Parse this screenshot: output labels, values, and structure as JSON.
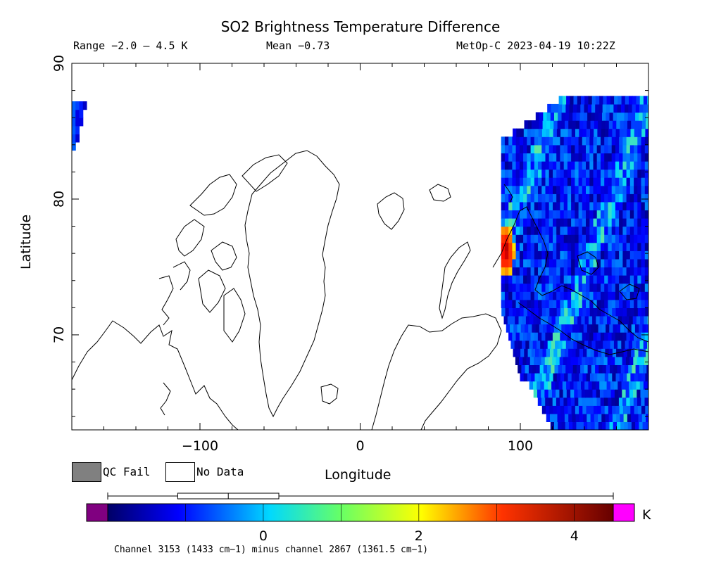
{
  "header": {
    "title": "SO2 Brightness Temperature Difference",
    "range": "Range −2.0 – 4.5 K",
    "mean": "Mean −0.73",
    "satellite_time": "MetOp-C 2023-04-19 10:22Z"
  },
  "legend": {
    "qc_fail_label": "QC Fail",
    "no_data_label": "No Data",
    "qc_fail_color": "#808080",
    "no_data_color": "#ffffff",
    "unit": "K"
  },
  "caption": "Channel 3153 (1433 cm−1) minus channel 2867 (1361.5 cm−1)",
  "chart_data": {
    "type": "heatmap",
    "title": "SO2 Brightness Temperature Difference",
    "xlabel": "Longitude",
    "ylabel": "Latitude",
    "xlim": [
      -180,
      180
    ],
    "ylim": [
      63,
      90
    ],
    "x_ticks": [
      -100,
      0,
      100
    ],
    "x_tick_labels": [
      "−100",
      "0",
      "100"
    ],
    "y_ticks": [
      70,
      80,
      90
    ],
    "y_tick_labels": [
      "70",
      "80",
      "90"
    ],
    "grid": false,
    "colorbar": {
      "min": -2.0,
      "max": 4.5,
      "ticks": [
        0,
        2,
        4
      ],
      "tick_labels": [
        "0",
        "2",
        "4"
      ],
      "unit": "K",
      "colors": [
        "#000066",
        "#0000ff",
        "#00d8ff",
        "#ffff00",
        "#ff0000",
        "#660000"
      ],
      "under_color": "#800080",
      "over_color": "#ff00ff"
    },
    "colorbar_range_indicator": {
      "low": -2.0,
      "high": 4.5,
      "box": [
        -1.1,
        0.2
      ]
    },
    "swath": {
      "lon_min": 88,
      "lon_max": 180,
      "lat_min": 63,
      "lat_max": 87,
      "typical_value": -0.7,
      "hotspot": {
        "lon": 90,
        "lat": 76,
        "value": 3.8
      }
    },
    "swath_edge_west": {
      "lon_min": -180,
      "lon_max": -171,
      "lat_min": 83,
      "lat_max": 87
    }
  }
}
